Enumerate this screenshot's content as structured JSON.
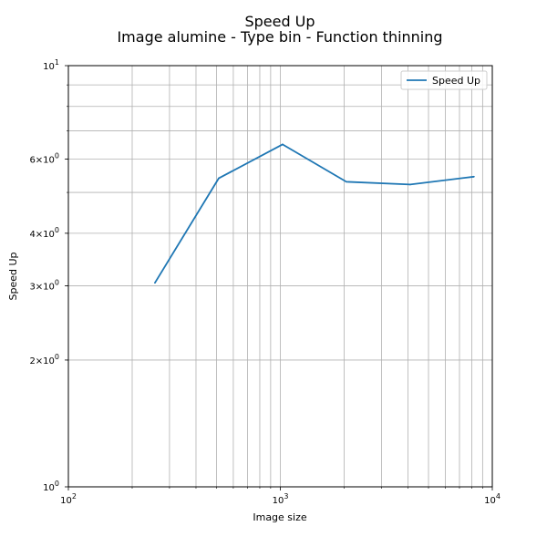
{
  "chart_data": {
    "type": "line",
    "title": "Speed Up",
    "subtitle": "Image alumine - Type bin - Function thinning",
    "xlabel": "Image size",
    "ylabel": "Speed Up",
    "xscale": "log",
    "yscale": "log",
    "xlim": [
      100,
      10000
    ],
    "ylim": [
      1,
      10
    ],
    "grid": "both",
    "legend": "top-right",
    "x_ticks": [
      {
        "value": 100,
        "base": "10",
        "exp": "2"
      },
      {
        "value": 1000,
        "base": "10",
        "exp": "3"
      },
      {
        "value": 10000,
        "base": "10",
        "exp": "4"
      }
    ],
    "y_ticks": [
      {
        "value": 1,
        "mant": "",
        "base": "10",
        "exp": "0"
      },
      {
        "value": 2,
        "mant": "2×",
        "base": "10",
        "exp": "0"
      },
      {
        "value": 3,
        "mant": "3×",
        "base": "10",
        "exp": "0"
      },
      {
        "value": 4,
        "mant": "4×",
        "base": "10",
        "exp": "0"
      },
      {
        "value": 6,
        "mant": "6×",
        "base": "10",
        "exp": "0"
      },
      {
        "value": 10,
        "mant": "",
        "base": "10",
        "exp": "1"
      }
    ],
    "series": [
      {
        "name": "Speed Up",
        "color": "#1f77b4",
        "x": [
          256,
          512,
          1024,
          2048,
          4096,
          8192
        ],
        "y": [
          3.05,
          5.4,
          6.5,
          5.3,
          5.22,
          5.45
        ]
      }
    ]
  }
}
